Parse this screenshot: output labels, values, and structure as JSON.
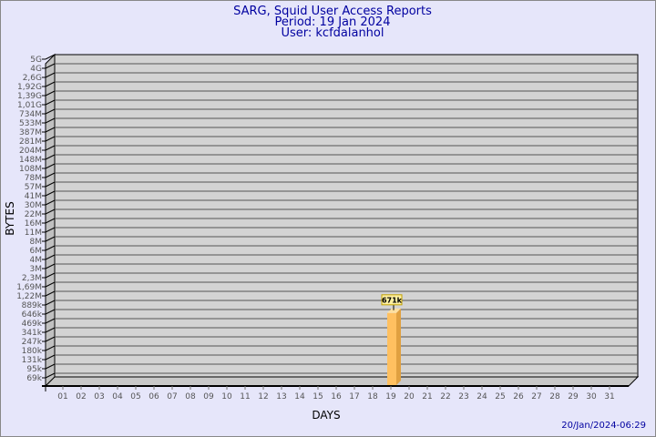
{
  "chart_data": {
    "type": "bar",
    "title": "SARG, Squid User Access Reports",
    "subtitle_lines": [
      "Period: 19 Jan 2024",
      "User: kcfdalanhol"
    ],
    "xlabel": "DAYS",
    "ylabel": "BYTES",
    "categories": [
      "01",
      "02",
      "03",
      "04",
      "05",
      "06",
      "07",
      "08",
      "09",
      "10",
      "11",
      "12",
      "13",
      "14",
      "15",
      "16",
      "17",
      "18",
      "19",
      "20",
      "21",
      "22",
      "23",
      "24",
      "25",
      "26",
      "27",
      "28",
      "29",
      "30",
      "31"
    ],
    "y_tick_labels": [
      "5G",
      "4G",
      "2,6G",
      "1,92G",
      "1,39G",
      "1,01G",
      "734M",
      "533M",
      "387M",
      "281M",
      "204M",
      "148M",
      "108M",
      "78M",
      "57M",
      "41M",
      "30M",
      "22M",
      "16M",
      "11M",
      "8M",
      "6M",
      "4M",
      "3M",
      "2,3M",
      "1,69M",
      "1,22M",
      "889k",
      "646k",
      "469k",
      "341k",
      "247k",
      "180k",
      "131k",
      "95k",
      "69k"
    ],
    "y_scale": "log",
    "grid": true,
    "series": [
      {
        "values": [
          {
            "day": "19",
            "value": "671k",
            "label": "671k"
          }
        ]
      }
    ],
    "colors": {
      "bar": "#ffc060",
      "bar_side": "#e0a040",
      "wall": "#d3d3d3",
      "title": "#0000a0"
    },
    "timestamp": "20/Jan/2024-06:29"
  }
}
